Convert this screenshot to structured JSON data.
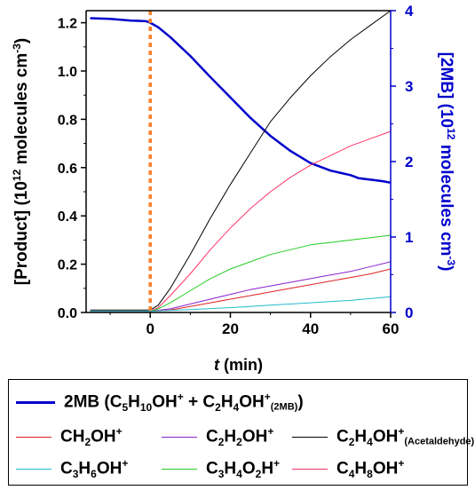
{
  "chart_data": {
    "type": "line",
    "xlabel_italic": "t",
    "xlabel_rest": "(min)",
    "ylabel_left": {
      "main": "[Product] (10",
      "exp": "12",
      "rest": " molecules cm",
      "exp2": "-3",
      "close": ")"
    },
    "ylabel_right": {
      "main": "[2MB] (10",
      "exp": "12",
      "rest": " molecules cm",
      "exp2": "-3",
      "close": ")"
    },
    "xlim": [
      -16,
      60
    ],
    "ylim_left": [
      0,
      1.25
    ],
    "ylim_right": [
      0,
      4
    ],
    "x_ticks": [
      "0",
      "20",
      "40",
      "60"
    ],
    "y_left_ticks": [
      "0.0",
      "0.2",
      "0.4",
      "0.6",
      "0.8",
      "1.0",
      "1.2"
    ],
    "y_right_ticks": [
      "0",
      "1",
      "2",
      "3",
      "4"
    ],
    "vline_x": 0,
    "vline_color": "#ff7f27",
    "series": [
      {
        "id": "2mb",
        "axis": "right",
        "color": "#0000cc",
        "width": 2.5,
        "x": [
          -15,
          -10,
          -5,
          -1,
          0,
          2,
          5,
          10,
          15,
          20,
          25,
          30,
          35,
          40,
          45,
          50,
          52,
          55,
          58,
          60
        ],
        "y": [
          3.9,
          3.89,
          3.87,
          3.86,
          3.84,
          3.78,
          3.65,
          3.4,
          3.12,
          2.85,
          2.58,
          2.34,
          2.14,
          1.98,
          1.88,
          1.82,
          1.78,
          1.76,
          1.74,
          1.72
        ]
      },
      {
        "id": "c2h4oh_acet",
        "axis": "left",
        "color": "#000000",
        "width": 1,
        "x": [
          -15,
          -5,
          0,
          2,
          5,
          10,
          15,
          20,
          25,
          30,
          35,
          40,
          45,
          50,
          55,
          60
        ],
        "y": [
          0.01,
          0.01,
          0.01,
          0.03,
          0.1,
          0.24,
          0.39,
          0.53,
          0.66,
          0.79,
          0.89,
          0.98,
          1.06,
          1.13,
          1.19,
          1.25
        ]
      },
      {
        "id": "c4h8oh",
        "axis": "left",
        "color": "#ff3366",
        "width": 1,
        "x": [
          -15,
          -5,
          0,
          2,
          5,
          10,
          15,
          20,
          25,
          30,
          35,
          40,
          45,
          50,
          55,
          60
        ],
        "y": [
          0.005,
          0.005,
          0.005,
          0.02,
          0.07,
          0.16,
          0.26,
          0.35,
          0.43,
          0.5,
          0.56,
          0.61,
          0.65,
          0.69,
          0.72,
          0.75
        ]
      },
      {
        "id": "c3h4o2h",
        "axis": "left",
        "color": "#22cc22",
        "width": 1,
        "x": [
          -15,
          -5,
          0,
          2,
          5,
          10,
          15,
          20,
          25,
          30,
          35,
          40,
          45,
          50,
          55,
          60
        ],
        "y": [
          0.005,
          0.005,
          0.005,
          0.015,
          0.04,
          0.09,
          0.14,
          0.18,
          0.21,
          0.24,
          0.26,
          0.28,
          0.29,
          0.3,
          0.31,
          0.32
        ]
      },
      {
        "id": "c2h2oh",
        "axis": "left",
        "color": "#8822cc",
        "width": 1,
        "x": [
          -15,
          -5,
          0,
          5,
          10,
          15,
          20,
          25,
          30,
          35,
          40,
          45,
          50,
          55,
          60
        ],
        "y": [
          0.005,
          0.005,
          0.005,
          0.015,
          0.035,
          0.055,
          0.075,
          0.095,
          0.11,
          0.125,
          0.14,
          0.155,
          0.17,
          0.19,
          0.21
        ]
      },
      {
        "id": "ch2oh",
        "axis": "left",
        "color": "#dd2222",
        "width": 1,
        "x": [
          -15,
          -5,
          0,
          5,
          10,
          15,
          20,
          25,
          30,
          35,
          40,
          45,
          50,
          55,
          60
        ],
        "y": [
          0.005,
          0.005,
          0.005,
          0.01,
          0.025,
          0.04,
          0.055,
          0.07,
          0.085,
          0.1,
          0.115,
          0.13,
          0.145,
          0.16,
          0.18
        ]
      },
      {
        "id": "c3h6oh",
        "axis": "left",
        "color": "#22bbcc",
        "width": 1,
        "x": [
          -15,
          -5,
          0,
          10,
          20,
          30,
          40,
          50,
          60
        ],
        "y": [
          0.005,
          0.005,
          0.005,
          0.012,
          0.02,
          0.03,
          0.04,
          0.05,
          0.065
        ]
      }
    ]
  },
  "legend": [
    {
      "id": "2mb",
      "color": "#0000cc",
      "width": 3,
      "html": "2MB (C<sub>5</sub>H<sub>10</sub>OH<sup>+</sup> + C<sub>2</sub>H<sub>4</sub>OH<sup>+</sup><span class=\"small\">(2MB)</span>)"
    },
    {
      "id": "ch2oh",
      "color": "#dd2222",
      "width": 1.5,
      "html": "CH<sub>2</sub>OH<sup>+</sup>"
    },
    {
      "id": "c2h2oh",
      "color": "#8822cc",
      "width": 1.5,
      "html": "C<sub>2</sub>H<sub>2</sub>OH<sup>+</sup>"
    },
    {
      "id": "c2h4oh_acet",
      "color": "#000000",
      "width": 1.5,
      "html": "C<sub>2</sub>H<sub>4</sub>OH<sup>+</sup><span class=\"small\">(Acetaldehyde)</span>"
    },
    {
      "id": "c3h6oh",
      "color": "#22bbcc",
      "width": 1.5,
      "html": "C<sub>3</sub>H<sub>6</sub>OH<sup>+</sup>"
    },
    {
      "id": "c3h4o2h",
      "color": "#22cc22",
      "width": 1.5,
      "html": "C<sub>3</sub>H<sub>4</sub>O<sub>2</sub>H<sup>+</sup>"
    },
    {
      "id": "c4h8oh",
      "color": "#ff3366",
      "width": 1.5,
      "html": "C<sub>4</sub>H<sub>8</sub>OH<sup>+</sup>"
    }
  ]
}
